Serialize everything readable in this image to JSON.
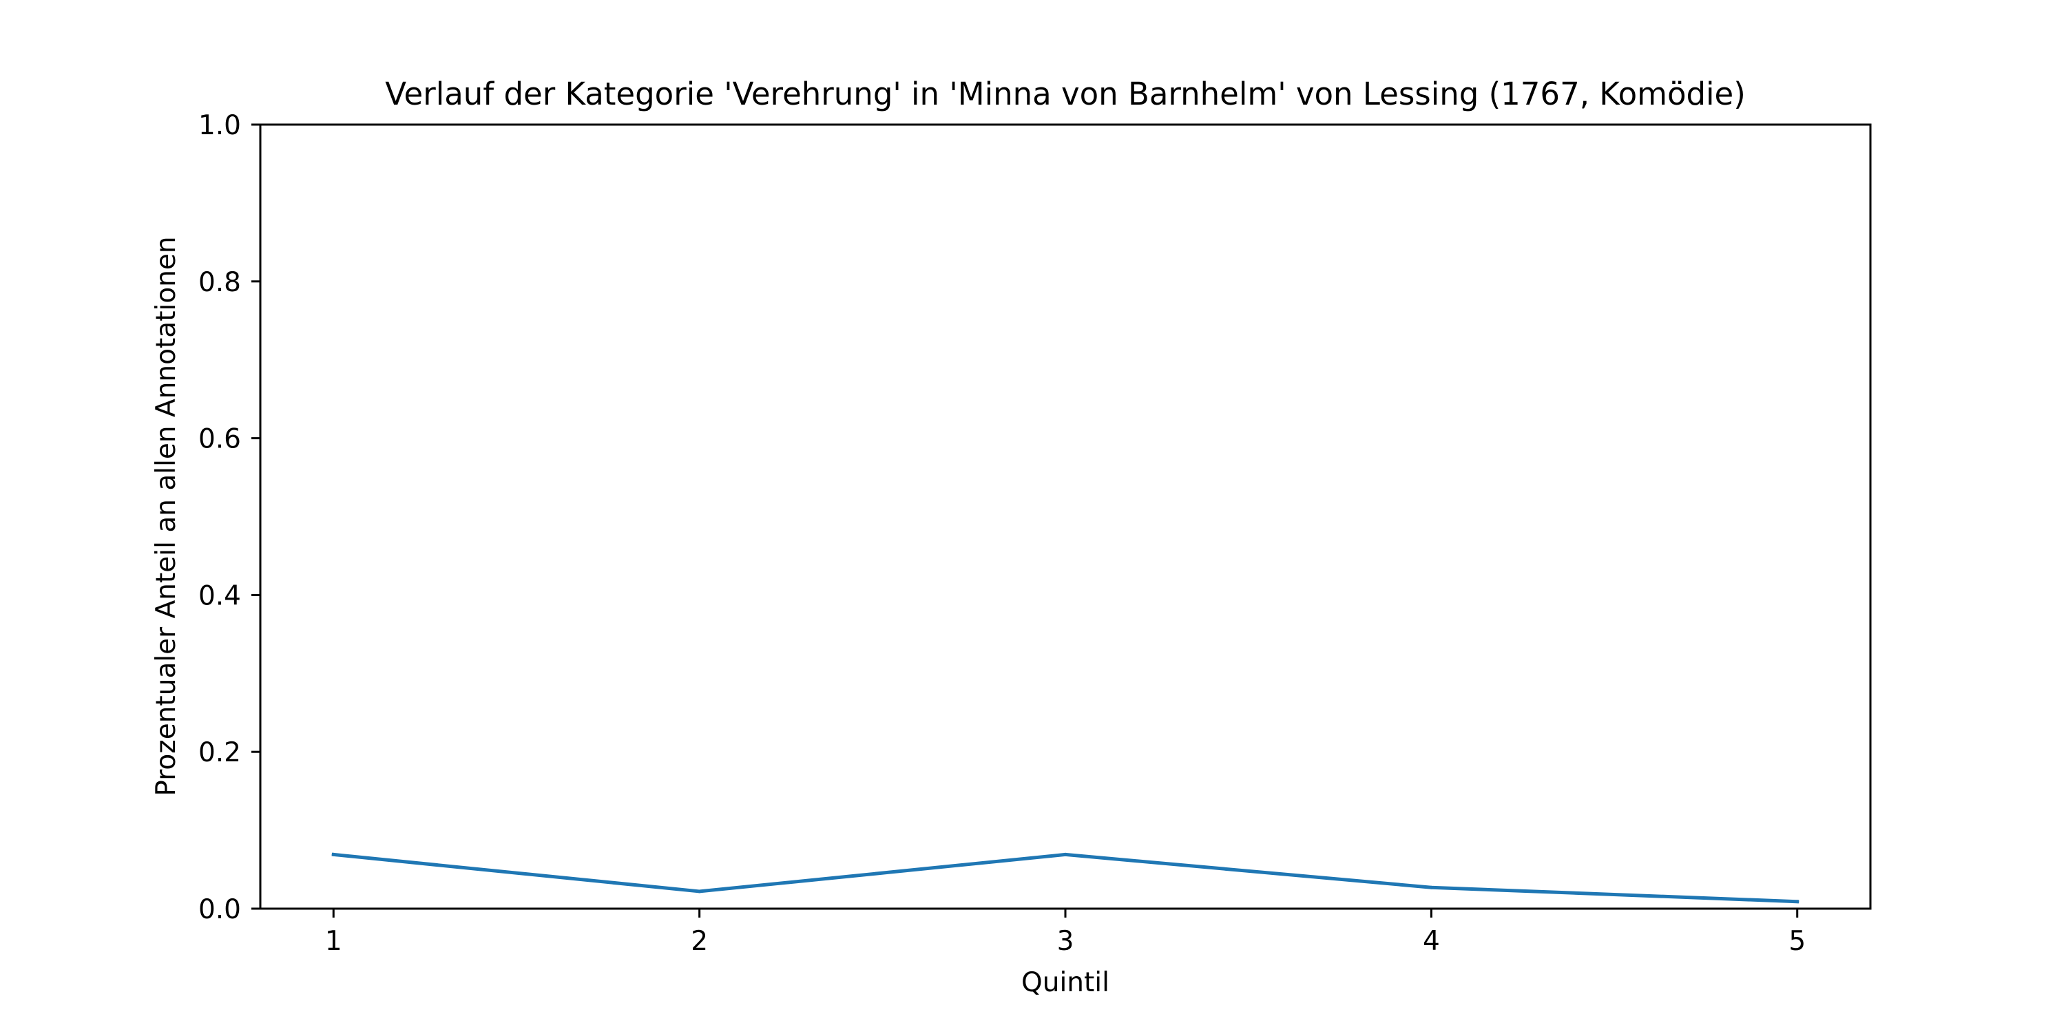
{
  "chart_data": {
    "type": "line",
    "title": "Verlauf der Kategorie 'Verehrung' in 'Minna von Barnhelm' von Lessing (1767, Komödie)",
    "xlabel": "Quintil",
    "ylabel": "Prozentualer Anteil an allen Annotationen",
    "x": [
      1,
      2,
      3,
      4,
      5
    ],
    "x_tick_labels": [
      "1",
      "2",
      "3",
      "4",
      "5"
    ],
    "xlim": [
      0.8,
      5.2
    ],
    "ylim": [
      0.0,
      1.0
    ],
    "y_ticks": [
      0.0,
      0.2,
      0.4,
      0.6,
      0.8,
      1.0
    ],
    "y_tick_labels": [
      "0.0",
      "0.2",
      "0.4",
      "0.6",
      "0.8",
      "1.0"
    ],
    "series": [
      {
        "values": [
          0.069,
          0.022,
          0.069,
          0.027,
          0.009
        ],
        "color": "#1f77b4"
      }
    ],
    "grid": false,
    "legend": "none"
  }
}
